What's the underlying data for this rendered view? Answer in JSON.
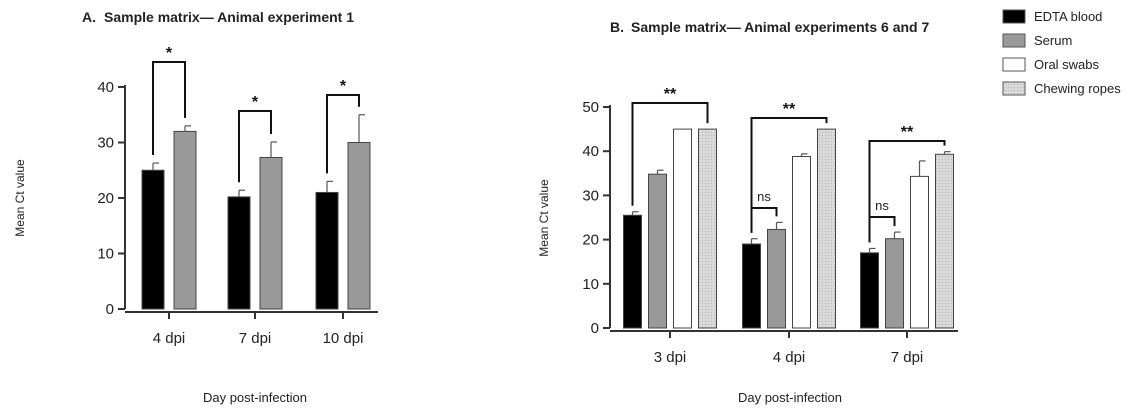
{
  "chart_data": [
    {
      "type": "bar",
      "panel_label": "A.",
      "title": "Sample matrix— Animal experiment 1",
      "xlabel": "Day post-infection",
      "ylabel": "Mean Ct value",
      "ylim": [
        0,
        40
      ],
      "yticks": [
        0,
        10,
        20,
        30,
        40
      ],
      "categories": [
        "4 dpi",
        "7 dpi",
        "10 dpi"
      ],
      "series": [
        {
          "name": "EDTA blood",
          "color": "#000000",
          "values": [
            25,
            20.2,
            21
          ],
          "errors": [
            1.3,
            1.2,
            2
          ]
        },
        {
          "name": "Serum",
          "color": "#999999",
          "values": [
            32,
            27.3,
            30
          ],
          "errors": [
            1,
            2.8,
            5
          ]
        }
      ],
      "significance": [
        {
          "category": "4 dpi",
          "label": "*"
        },
        {
          "category": "7 dpi",
          "label": "*"
        },
        {
          "category": "10 dpi",
          "label": "*"
        }
      ]
    },
    {
      "type": "bar",
      "panel_label": "B.",
      "title": "Sample matrix— Animal experiments 6 and 7",
      "xlabel": "Day post-infection",
      "ylabel": "Mean Ct value",
      "ylim": [
        0,
        50
      ],
      "yticks": [
        0,
        10,
        20,
        30,
        40,
        50
      ],
      "categories": [
        "3 dpi",
        "4 dpi",
        "7 dpi"
      ],
      "series": [
        {
          "name": "EDTA blood",
          "color": "#000000",
          "values": [
            25.5,
            19,
            17
          ],
          "errors": [
            0.8,
            1.2,
            1
          ]
        },
        {
          "name": "Serum",
          "color": "#999999",
          "values": [
            34.8,
            22.3,
            20.2
          ],
          "errors": [
            0.9,
            1.6,
            1.5
          ]
        },
        {
          "name": "Oral swabs",
          "color": "#ffffff",
          "values": [
            45,
            38.8,
            34.3
          ],
          "errors": [
            0,
            0.6,
            3.5
          ]
        },
        {
          "name": "Chewing ropes",
          "color": "#d9d9d9",
          "values": [
            45,
            45,
            39.3
          ],
          "errors": [
            0,
            0,
            0.6
          ]
        }
      ],
      "significance": [
        {
          "category": "3 dpi",
          "from": "EDTA blood",
          "to": "Chewing ropes",
          "label": "**"
        },
        {
          "category": "4 dpi",
          "from": "EDTA blood",
          "to": "Serum",
          "label": "ns"
        },
        {
          "category": "4 dpi",
          "from": "EDTA blood",
          "to": "Chewing ropes",
          "label": "**"
        },
        {
          "category": "7 dpi",
          "from": "EDTA blood",
          "to": "Serum",
          "label": "ns"
        },
        {
          "category": "7 dpi",
          "from": "EDTA blood",
          "to": "Chewing ropes",
          "label": "**"
        }
      ]
    }
  ],
  "legend": {
    "placement": "top-right",
    "items": [
      {
        "label": "EDTA blood",
        "color": "#000000"
      },
      {
        "label": "Serum",
        "color": "#999999"
      },
      {
        "label": "Oral swabs",
        "color": "#ffffff"
      },
      {
        "label": "Chewing ropes",
        "color": "#d9d9d9"
      }
    ]
  }
}
